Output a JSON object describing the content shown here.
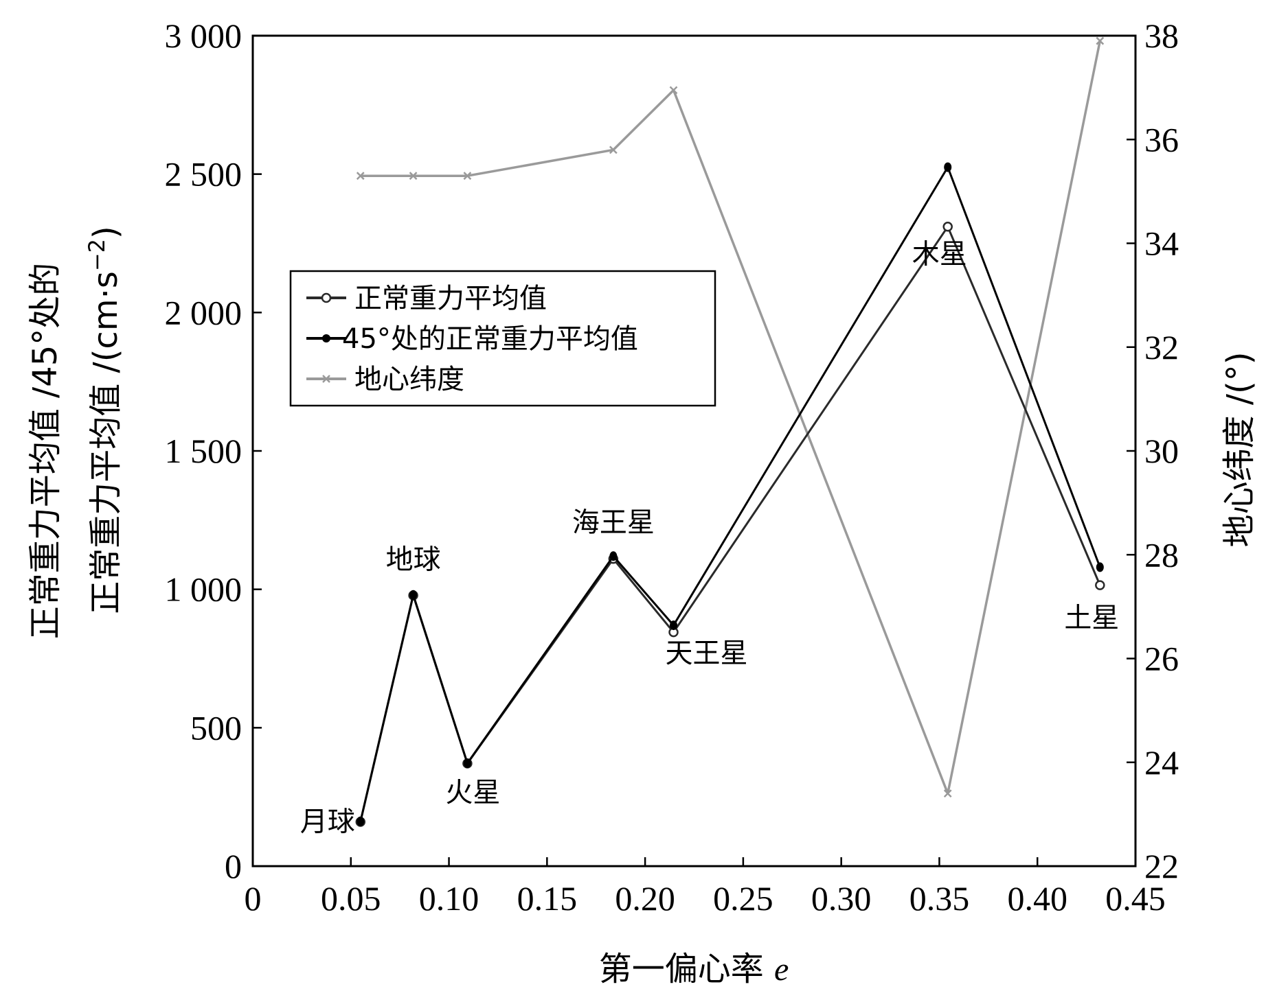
{
  "chart_data": {
    "type": "line",
    "xlabel": "第一偏心率",
    "xlabel_var": "e",
    "ylabel_left_line1": "正常重力平均值 /45°处的",
    "ylabel_left_line2": "正常重力平均值 /(cm·s",
    "ylabel_left_sup": "−2",
    "ylabel_left_close": ")",
    "ylabel_right": "地心纬度 /(°)",
    "xlim": [
      0,
      0.45
    ],
    "ylim_left": [
      0,
      3000
    ],
    "ylim_right": [
      22,
      38
    ],
    "x_ticks": [
      0,
      0.05,
      0.1,
      0.15,
      0.2,
      0.25,
      0.3,
      0.35,
      0.4,
      0.45
    ],
    "x_tick_labels": [
      "0",
      "0.05",
      "0.10",
      "0.15",
      "0.20",
      "0.25",
      "0.30",
      "0.35",
      "0.40",
      "0.45"
    ],
    "y_left_ticks": [
      0,
      500,
      1000,
      1500,
      2000,
      2500,
      3000
    ],
    "y_left_tick_labels": [
      "0",
      "500",
      "1 000",
      "1 500",
      "2 000",
      "2 500",
      "3 000"
    ],
    "y_right_ticks": [
      22,
      24,
      26,
      28,
      30,
      32,
      34,
      36,
      38
    ],
    "y_right_tick_labels": [
      "22",
      "24",
      "26",
      "28",
      "30",
      "32",
      "34",
      "36",
      "38"
    ],
    "x": [
      0.0549,
      0.0818,
      0.1094,
      0.1838,
      0.2145,
      0.3543,
      0.4319
    ],
    "point_labels": [
      "月球",
      "地球",
      "火星",
      "海王星",
      "天王星",
      "木星",
      "土星"
    ],
    "series": [
      {
        "name": "正常重力平均值",
        "axis": "left",
        "marker": "open-circle",
        "color": "#2a2a2a",
        "values": [
          160,
          978,
          371,
          1110,
          845,
          2310,
          1015
        ]
      },
      {
        "name": "45°处的正常重力平均值",
        "axis": "left",
        "marker": "filled-circle",
        "color": "#000000",
        "values": [
          162,
          980,
          372,
          1120,
          870,
          2525,
          1080
        ]
      },
      {
        "name": "地心纬度",
        "axis": "right",
        "marker": "x",
        "color": "#9a9a9a",
        "values": [
          35.3,
          35.3,
          35.3,
          35.8,
          36.95,
          23.4,
          37.9
        ]
      }
    ],
    "legend_position": "upper-left",
    "grid": false
  }
}
